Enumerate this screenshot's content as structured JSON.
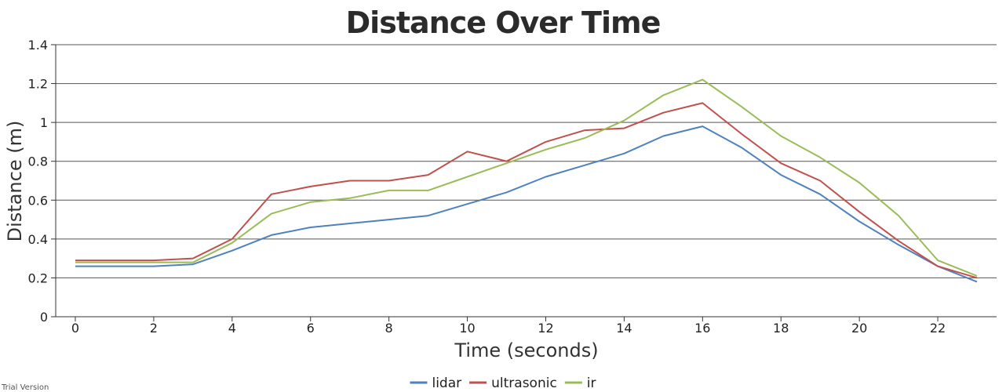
{
  "chart_data": {
    "type": "line",
    "title": "Distance Over Time",
    "xlabel": "Time (seconds)",
    "ylabel": "Distance (m)",
    "xlim": [
      -0.5,
      23.5
    ],
    "ylim": [
      0,
      1.4
    ],
    "xticks": [
      0,
      2,
      4,
      6,
      8,
      10,
      12,
      14,
      16,
      18,
      20,
      22
    ],
    "yticks": [
      0,
      0.2,
      0.4,
      0.6,
      0.8,
      1,
      1.2,
      1.4
    ],
    "grid": true,
    "legend_position": "bottom",
    "x": [
      0,
      1,
      2,
      3,
      4,
      5,
      6,
      7,
      8,
      9,
      10,
      11,
      12,
      13,
      14,
      15,
      16,
      17,
      18,
      19,
      20,
      21,
      22,
      23
    ],
    "series": [
      {
        "name": "lidar",
        "color": "#4f81bd",
        "values": [
          0.26,
          0.26,
          0.26,
          0.27,
          0.34,
          0.42,
          0.46,
          0.48,
          0.5,
          0.52,
          0.58,
          0.64,
          0.72,
          0.78,
          0.84,
          0.93,
          0.98,
          0.87,
          0.73,
          0.63,
          0.49,
          0.37,
          0.26,
          0.18
        ]
      },
      {
        "name": "ultrasonic",
        "color": "#c0504d",
        "values": [
          0.29,
          0.29,
          0.29,
          0.3,
          0.4,
          0.63,
          0.67,
          0.7,
          0.7,
          0.73,
          0.85,
          0.8,
          0.9,
          0.96,
          0.97,
          1.05,
          1.1,
          0.94,
          0.79,
          0.7,
          0.54,
          0.39,
          0.26,
          0.2
        ]
      },
      {
        "name": "ir",
        "color": "#9bbb59",
        "values": [
          0.28,
          0.28,
          0.28,
          0.28,
          0.38,
          0.53,
          0.59,
          0.61,
          0.65,
          0.65,
          0.72,
          0.79,
          0.86,
          0.92,
          1.01,
          1.14,
          1.22,
          1.08,
          0.93,
          0.82,
          0.69,
          0.52,
          0.29,
          0.21
        ]
      }
    ]
  },
  "watermark": "Trial Version"
}
